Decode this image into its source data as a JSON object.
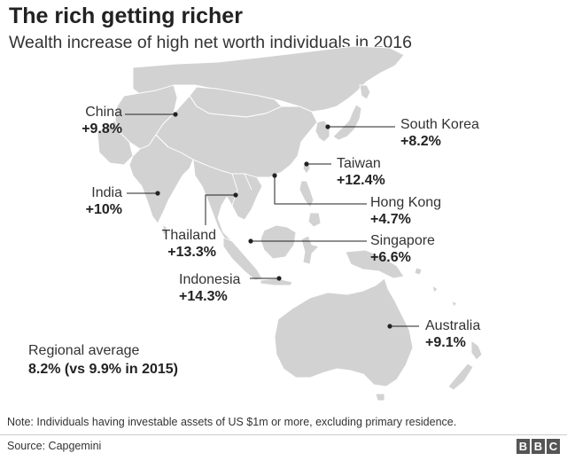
{
  "title": "The rich getting richer",
  "subtitle": "Wealth increase of high net worth individuals in 2016",
  "colors": {
    "land": "#d2d2d2",
    "border": "#ffffff",
    "leader": "#222222",
    "text": "#222222"
  },
  "countries": [
    {
      "id": "china",
      "name": "China",
      "value": "+9.8%",
      "change_pct": 9.8
    },
    {
      "id": "south-korea",
      "name": "South Korea",
      "value": "+8.2%",
      "change_pct": 8.2
    },
    {
      "id": "taiwan",
      "name": "Taiwan",
      "value": "+12.4%",
      "change_pct": 12.4
    },
    {
      "id": "india",
      "name": "India",
      "value": "+10%",
      "change_pct": 10
    },
    {
      "id": "hong-kong",
      "name": "Hong Kong",
      "value": "+4.7%",
      "change_pct": 4.7
    },
    {
      "id": "thailand",
      "name": "Thailand",
      "value": "+13.3%",
      "change_pct": 13.3
    },
    {
      "id": "singapore",
      "name": "Singapore",
      "value": "+6.6%",
      "change_pct": 6.6
    },
    {
      "id": "indonesia",
      "name": "Indonesia",
      "value": "+14.3%",
      "change_pct": 14.3
    },
    {
      "id": "australia",
      "name": "Australia",
      "value": "+9.1%",
      "change_pct": 9.1
    }
  ],
  "regional": {
    "label": "Regional average",
    "value": "8.2% (vs 9.9% in 2015)"
  },
  "note": "Note: Individuals having investable assets of US $1m or more, excluding primary residence.",
  "source": "Source: Capgemini",
  "logo": {
    "letters": [
      "B",
      "B",
      "C"
    ]
  }
}
